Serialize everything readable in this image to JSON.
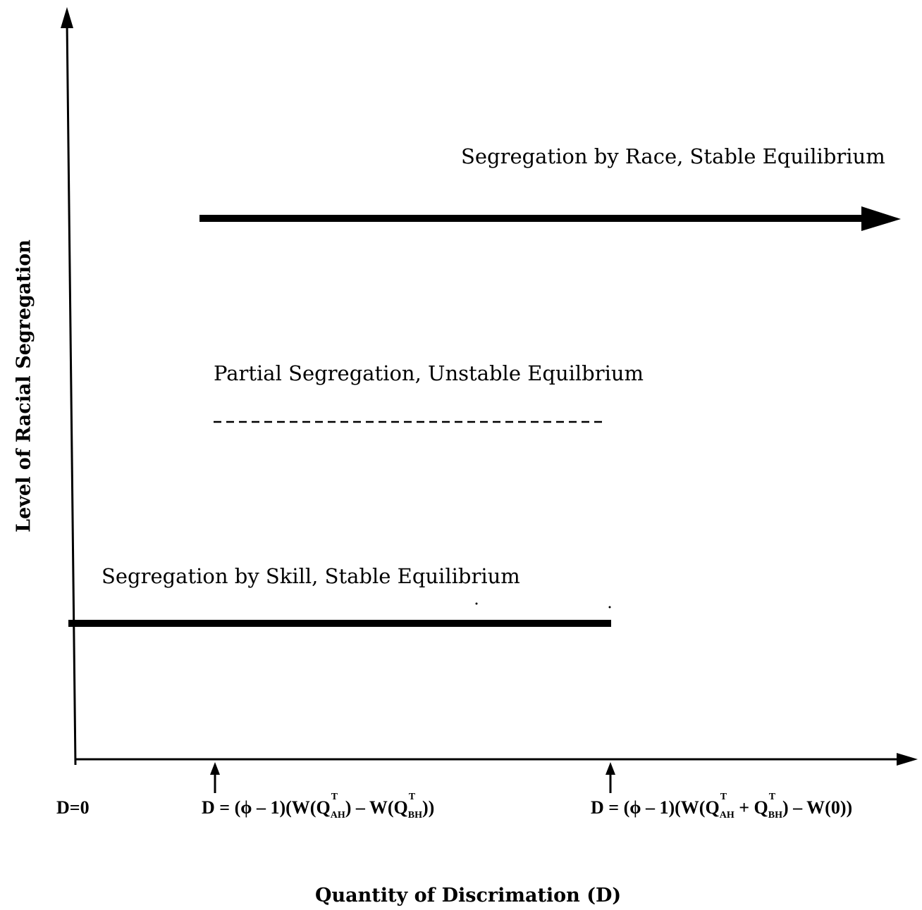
{
  "diagram": {
    "y_axis_label": "Level of Racial Segregation",
    "x_axis_label": "Quantity of Discrimation (D)",
    "regions": {
      "race": "Segregation by Race, Stable Equilibrium",
      "partial": "Partial Segregation, Unstable Equilbrium",
      "skill": "Segregation by Skill, Stable Equilibrium"
    },
    "ticks": {
      "origin": "D=0",
      "threshold1": {
        "lead": "D",
        "eq": "=",
        "phi_part": "(ϕ – 1)(W(Q",
        "sup": "T",
        "sub1": "AH",
        "mid": ") – W(Q",
        "sub2": "BH",
        "tail": "))"
      },
      "threshold2": {
        "lead": "D",
        "eq": "=",
        "phi_part": "(ϕ – 1)(W(Q",
        "sup": "T",
        "sub1": "AH",
        "mid": " + Q",
        "sub2": "BH",
        "tail": ") – W(0))"
      }
    },
    "colors": {
      "ink": "#000000",
      "paper": "#ffffff"
    }
  }
}
